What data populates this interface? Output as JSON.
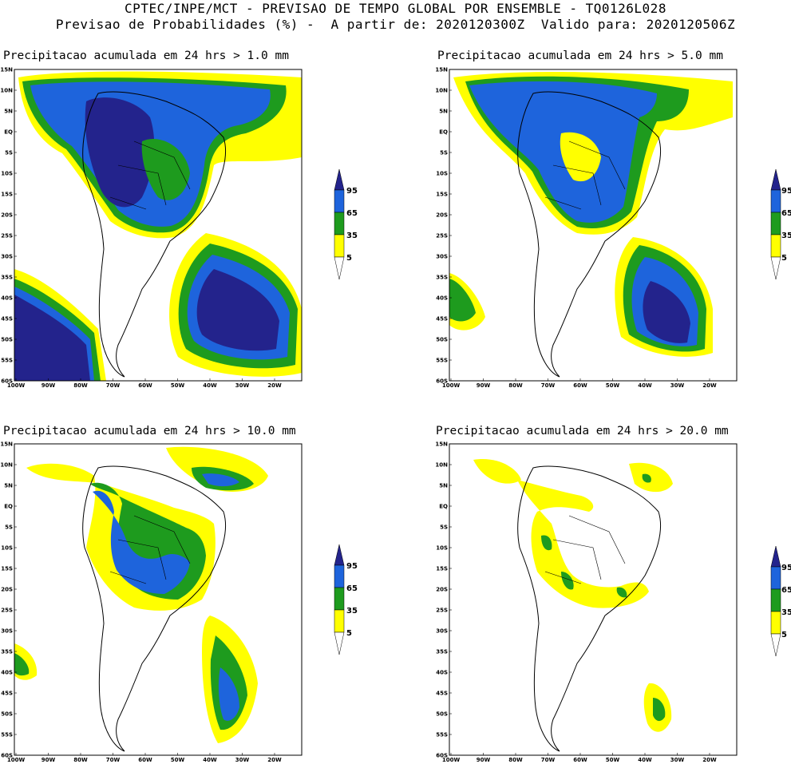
{
  "header": {
    "line1": "CPTEC/INPE/MCT - PREVISAO DE TEMPO GLOBAL POR ENSEMBLE - TQ0126L028",
    "line2": "Previsao de Probabilidades (%) -  A partir de: 2020120300Z  Valido para: 2020120506Z"
  },
  "axes": {
    "y_ticks": [
      "15N",
      "10N",
      "5N",
      "EQ",
      "5S",
      "10S",
      "15S",
      "20S",
      "25S",
      "30S",
      "35S",
      "40S",
      "45S",
      "50S",
      "55S",
      "60S"
    ],
    "x_ticks": [
      "100W",
      "90W",
      "80W",
      "70W",
      "60W",
      "50W",
      "40W",
      "30W",
      "20W"
    ]
  },
  "colorbar": {
    "levels": [
      "5",
      "35",
      "65",
      "95"
    ],
    "colors": {
      "low": "#ffff00",
      "mid": "#1e9b1e",
      "high": "#1e64dc",
      "top": "#23238c"
    }
  },
  "panels": [
    {
      "title": "Precipitacao acumulada em 24 hrs > 1.0 mm"
    },
    {
      "title": "Precipitacao acumulada em 24 hrs > 5.0 mm"
    },
    {
      "title": "Precipitacao acumulada em 24 hrs > 10.0 mm"
    },
    {
      "title": "Precipitacao acumulada em 24 hrs > 20.0 mm"
    }
  ]
}
